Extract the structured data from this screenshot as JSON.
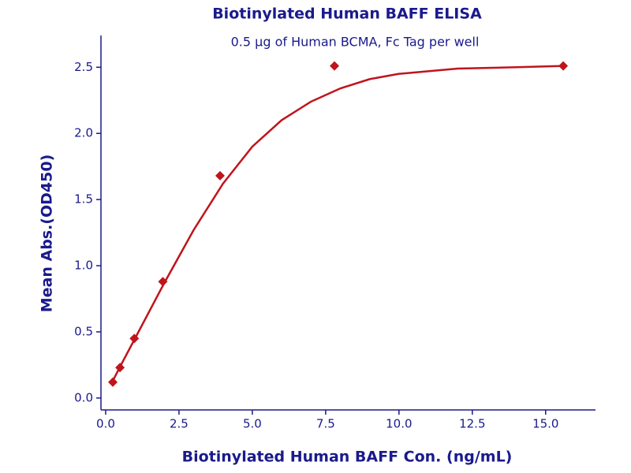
{
  "chart_data": {
    "type": "scatter",
    "title": "Biotinylated Human BAFF ELISA",
    "subtitle": "0.5 μg of Human BCMA, Fc Tag per well",
    "xlabel": "Biotinylated Human BAFF Con. (ng/mL)",
    "ylabel": "Mean Abs.(OD450)",
    "xlim": [
      -0.16,
      16.7
    ],
    "ylim": [
      -0.09,
      2.74
    ],
    "xticks": [
      {
        "value": 0,
        "label": "0.0"
      },
      2.5,
      {
        "value": 5,
        "label": "5.0"
      },
      7.5,
      {
        "value": 10,
        "label": "10.0"
      },
      12.5,
      {
        "value": 15,
        "label": "15.0"
      }
    ],
    "yticks": [
      {
        "value": 0,
        "label": "0.0"
      },
      0.5,
      {
        "value": 1,
        "label": "1.0"
      },
      1.5,
      {
        "value": 2,
        "label": "2.0"
      },
      2.5
    ],
    "series": [
      {
        "mode": "markers",
        "color": "#c0141c",
        "x": [
          0.244,
          0.488,
          0.977,
          1.95,
          3.9,
          7.8,
          15.6
        ],
        "values": [
          0.12,
          0.23,
          0.45,
          0.88,
          1.68,
          2.51,
          2.51
        ]
      },
      {
        "mode": "line",
        "color": "#c0141c",
        "x": [
          0.244,
          0.5,
          1,
          2,
          3,
          4,
          5,
          6,
          7,
          8,
          9,
          10,
          12,
          14,
          15.6
        ],
        "values": [
          0.13,
          0.24,
          0.45,
          0.87,
          1.27,
          1.62,
          1.9,
          2.1,
          2.24,
          2.34,
          2.41,
          2.45,
          2.49,
          2.5,
          2.51
        ]
      }
    ]
  }
}
